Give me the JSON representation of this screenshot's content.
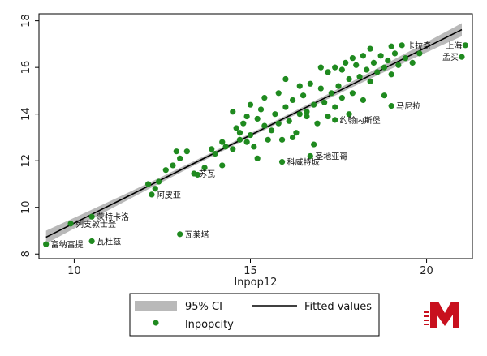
{
  "chart_data": {
    "type": "scatter",
    "xlabel": "lnpop12",
    "ylabel": "",
    "xlim": [
      9.0,
      21.3
    ],
    "ylim": [
      7.8,
      18.3
    ],
    "xticks": [
      10,
      15,
      20
    ],
    "yticks": [
      8,
      10,
      12,
      14,
      16,
      18
    ],
    "grid": false,
    "legend_position": "bottom",
    "colors": {
      "points": "#1f8a1f",
      "fit": "#000000",
      "ci": "#b9b9b9"
    },
    "legend": {
      "ci_label": "95% CI",
      "fit_label": "Fitted values",
      "points_label": "lnpopcity"
    },
    "fit": {
      "x": [
        9.2,
        21.0
      ],
      "y": [
        8.72,
        17.62
      ],
      "ci_halfwidth_at_ends": 0.28,
      "ci_halfwidth_at_center": 0.08
    },
    "labeled_points": [
      {
        "label": "上海",
        "x": 21.1,
        "y": 16.95
      },
      {
        "label": "孟买",
        "x": 21.0,
        "y": 16.45
      },
      {
        "label": "卡拉奇",
        "x": 19.3,
        "y": 16.95
      },
      {
        "label": "马尼拉",
        "x": 19.0,
        "y": 14.35
      },
      {
        "label": "约翰内斯堡",
        "x": 17.4,
        "y": 13.75
      },
      {
        "label": "圣地亚哥",
        "x": 16.7,
        "y": 12.2
      },
      {
        "label": "科威特城",
        "x": 15.9,
        "y": 11.95
      },
      {
        "label": "苏瓦",
        "x": 13.4,
        "y": 11.45
      },
      {
        "label": "阿皮亚",
        "x": 12.2,
        "y": 10.55
      },
      {
        "label": "蒙特卡洛",
        "x": 10.5,
        "y": 9.6
      },
      {
        "label": "列支敦士登",
        "x": 9.9,
        "y": 9.3
      },
      {
        "label": "富纳富提",
        "x": 9.2,
        "y": 8.42
      },
      {
        "label": "瓦杜兹",
        "x": 10.5,
        "y": 8.55
      },
      {
        "label": "瓦莱塔",
        "x": 13.0,
        "y": 8.85
      }
    ],
    "points": [
      [
        12.1,
        11.0
      ],
      [
        12.3,
        10.8
      ],
      [
        12.6,
        11.6
      ],
      [
        12.8,
        11.8
      ],
      [
        12.9,
        12.4
      ],
      [
        13.2,
        12.4
      ],
      [
        13.5,
        11.4
      ],
      [
        13.7,
        11.7
      ],
      [
        13.9,
        12.5
      ],
      [
        14.0,
        12.3
      ],
      [
        14.2,
        12.8
      ],
      [
        14.3,
        12.6
      ],
      [
        14.5,
        12.5
      ],
      [
        14.6,
        13.4
      ],
      [
        14.7,
        12.9
      ],
      [
        14.8,
        13.6
      ],
      [
        14.9,
        12.8
      ],
      [
        15.0,
        13.1
      ],
      [
        15.1,
        12.6
      ],
      [
        15.2,
        13.8
      ],
      [
        15.3,
        14.2
      ],
      [
        15.4,
        13.5
      ],
      [
        15.5,
        12.9
      ],
      [
        15.6,
        13.3
      ],
      [
        15.7,
        14.0
      ],
      [
        15.8,
        13.6
      ],
      [
        15.9,
        12.9
      ],
      [
        16.0,
        14.3
      ],
      [
        16.1,
        13.7
      ],
      [
        16.2,
        14.6
      ],
      [
        16.3,
        13.2
      ],
      [
        16.4,
        14.0
      ],
      [
        16.5,
        14.8
      ],
      [
        16.6,
        13.9
      ],
      [
        16.7,
        15.3
      ],
      [
        16.8,
        14.4
      ],
      [
        16.9,
        13.6
      ],
      [
        17.0,
        15.1
      ],
      [
        17.1,
        14.5
      ],
      [
        17.2,
        15.8
      ],
      [
        17.3,
        14.9
      ],
      [
        17.4,
        16.0
      ],
      [
        17.5,
        15.2
      ],
      [
        17.6,
        14.7
      ],
      [
        17.7,
        16.2
      ],
      [
        17.8,
        15.5
      ],
      [
        17.9,
        14.9
      ],
      [
        18.0,
        16.1
      ],
      [
        18.1,
        15.6
      ],
      [
        18.2,
        16.5
      ],
      [
        18.3,
        15.9
      ],
      [
        18.4,
        15.4
      ],
      [
        18.5,
        16.2
      ],
      [
        18.6,
        15.8
      ],
      [
        18.7,
        16.5
      ],
      [
        18.8,
        16.0
      ],
      [
        18.9,
        16.3
      ],
      [
        19.0,
        15.7
      ],
      [
        19.1,
        16.6
      ],
      [
        19.2,
        16.1
      ],
      [
        19.4,
        16.4
      ],
      [
        19.6,
        16.2
      ],
      [
        19.8,
        16.6
      ],
      [
        16.2,
        13.0
      ],
      [
        15.4,
        14.7
      ],
      [
        17.0,
        16.0
      ],
      [
        17.6,
        15.9
      ],
      [
        18.2,
        14.6
      ],
      [
        16.8,
        12.7
      ],
      [
        15.0,
        14.4
      ],
      [
        14.5,
        14.1
      ],
      [
        14.7,
        13.2
      ],
      [
        16.4,
        15.2
      ],
      [
        17.2,
        13.9
      ],
      [
        18.4,
        16.8
      ],
      [
        19.0,
        16.9
      ],
      [
        15.8,
        14.9
      ],
      [
        16.6,
        14.1
      ],
      [
        17.8,
        14.0
      ],
      [
        13.0,
        12.1
      ],
      [
        12.4,
        11.1
      ],
      [
        14.2,
        11.8
      ],
      [
        15.2,
        12.1
      ],
      [
        18.8,
        14.8
      ],
      [
        17.4,
        14.3
      ],
      [
        16.0,
        15.5
      ],
      [
        14.9,
        13.9
      ],
      [
        17.9,
        16.4
      ]
    ]
  }
}
